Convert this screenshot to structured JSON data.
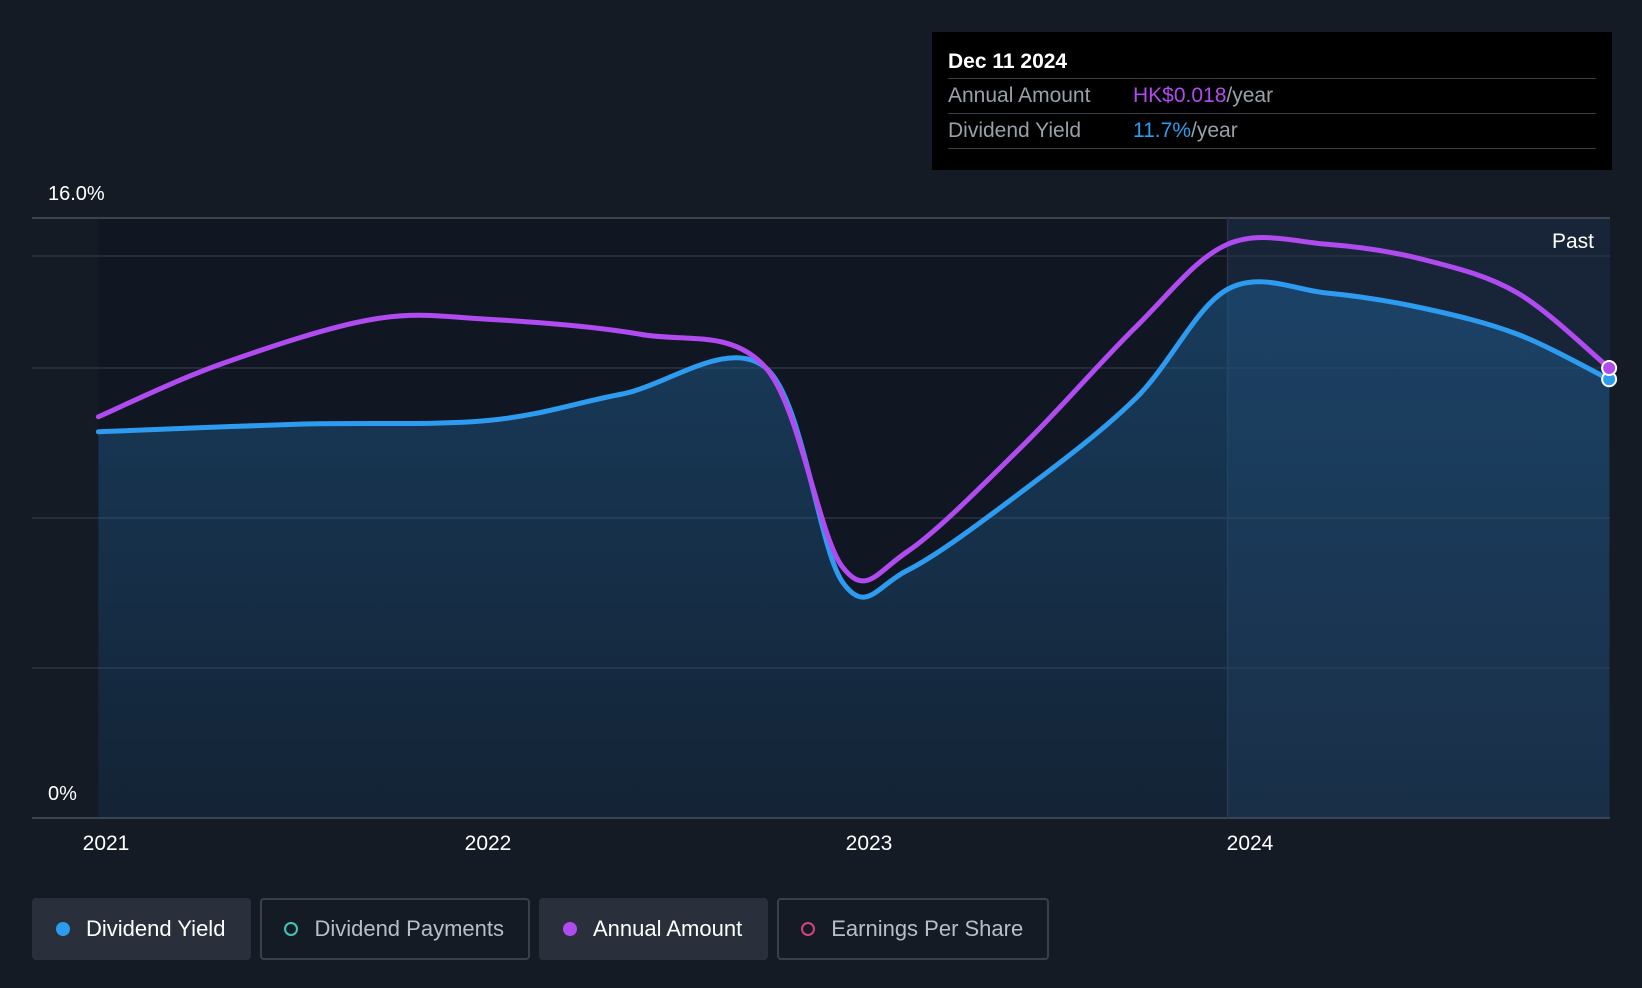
{
  "chart_data": {
    "type": "line",
    "ylabel_top": "16.0%",
    "ylabel_bottom": "0%",
    "ylim": [
      0,
      16
    ],
    "x_ticks": [
      "2021",
      "2022",
      "2023",
      "2024"
    ],
    "past_label": "Past",
    "series": [
      {
        "name": "Dividend Yield",
        "color": "#2d9bf0",
        "points": [
          [
            2020.98,
            10.3
          ],
          [
            2021.5,
            10.5
          ],
          [
            2022.0,
            10.6
          ],
          [
            2022.35,
            11.3
          ],
          [
            2022.73,
            12.0
          ],
          [
            2022.93,
            6.3
          ],
          [
            2023.1,
            6.6
          ],
          [
            2023.4,
            8.7
          ],
          [
            2023.7,
            11.2
          ],
          [
            2023.94,
            14.1
          ],
          [
            2024.2,
            14.0
          ],
          [
            2024.45,
            13.6
          ],
          [
            2024.7,
            12.9
          ],
          [
            2024.94,
            11.7
          ]
        ]
      },
      {
        "name": "Annual Amount",
        "color": "#b04bf0",
        "points": [
          [
            2020.98,
            10.7
          ],
          [
            2021.3,
            12.1
          ],
          [
            2021.7,
            13.3
          ],
          [
            2022.0,
            13.3
          ],
          [
            2022.4,
            12.9
          ],
          [
            2022.73,
            12.0
          ],
          [
            2022.93,
            6.7
          ],
          [
            2023.1,
            7.1
          ],
          [
            2023.4,
            9.9
          ],
          [
            2023.7,
            13.1
          ],
          [
            2023.94,
            15.3
          ],
          [
            2024.2,
            15.3
          ],
          [
            2024.45,
            14.9
          ],
          [
            2024.7,
            14.0
          ],
          [
            2024.94,
            12.0
          ]
        ]
      }
    ]
  },
  "tooltip": {
    "date": "Dec 11 2024",
    "annual_amount_label": "Annual Amount",
    "annual_amount_value": "HK$0.018",
    "annual_amount_unit": "/year",
    "dividend_yield_label": "Dividend Yield",
    "dividend_yield_value": "11.7%",
    "dividend_yield_unit": "/year"
  },
  "legend": [
    {
      "label": "Dividend Yield",
      "color": "#2d9bf0",
      "filled": true,
      "active": true
    },
    {
      "label": "Dividend Payments",
      "color": "#3fc5b7",
      "filled": false,
      "active": false
    },
    {
      "label": "Annual Amount",
      "color": "#b04bf0",
      "filled": true,
      "active": true
    },
    {
      "label": "Earnings Per Share",
      "color": "#d1457f",
      "filled": false,
      "active": false
    }
  ]
}
